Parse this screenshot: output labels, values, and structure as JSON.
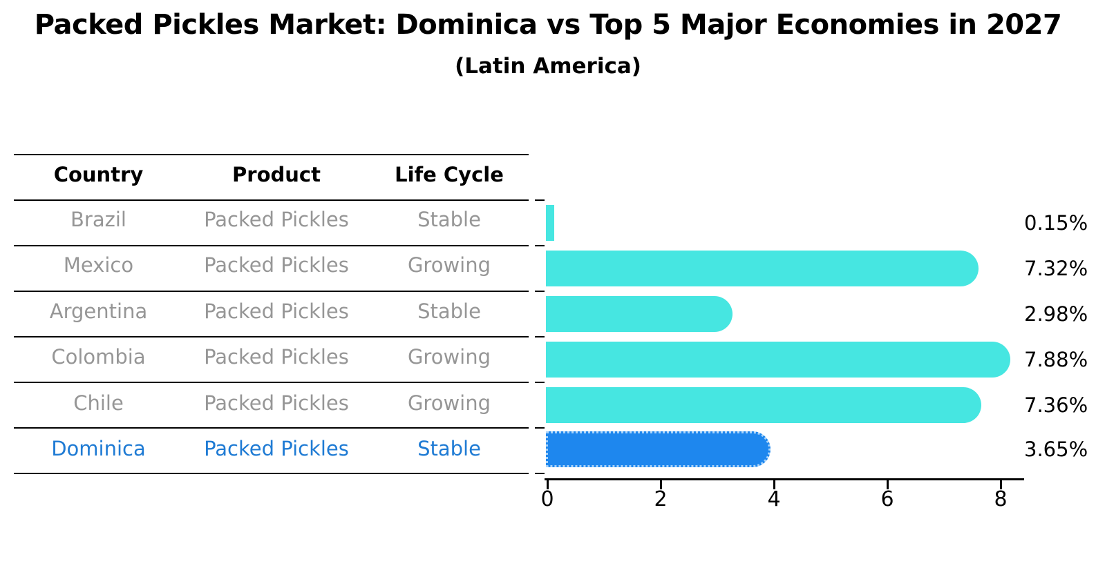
{
  "title": "Packed Pickles Market: Dominica vs Top 5 Major Economies in 2027",
  "subtitle": "(Latin America)",
  "table": {
    "headers": [
      "Country",
      "Product",
      "Life Cycle"
    ],
    "rows": [
      {
        "country": "Brazil",
        "product": "Packed Pickles",
        "life_cycle": "Stable",
        "highlighted": false
      },
      {
        "country": "Mexico",
        "product": "Packed Pickles",
        "life_cycle": "Growing",
        "highlighted": false
      },
      {
        "country": "Argentina",
        "product": "Packed Pickles",
        "life_cycle": "Stable",
        "highlighted": false
      },
      {
        "country": "Colombia",
        "product": "Packed Pickles",
        "life_cycle": "Growing",
        "highlighted": false
      },
      {
        "country": "Chile",
        "product": "Packed Pickles",
        "life_cycle": "Growing",
        "highlighted": false
      },
      {
        "country": "Dominica",
        "product": "Packed Pickles",
        "life_cycle": "Stable",
        "highlighted": true
      }
    ]
  },
  "chart_data": {
    "type": "bar",
    "orientation": "horizontal",
    "title": "Packed Pickles Market: Dominica vs Top 5 Major Economies in 2027",
    "subtitle": "(Latin America)",
    "categories": [
      "Brazil",
      "Mexico",
      "Argentina",
      "Colombia",
      "Chile",
      "Dominica"
    ],
    "values": [
      0.15,
      7.32,
      2.98,
      7.88,
      7.36,
      3.65
    ],
    "value_labels": [
      "0.15%",
      "7.32%",
      "2.98%",
      "7.88%",
      "7.36%",
      "3.65%"
    ],
    "xtick_labels": [
      "0",
      "2",
      "4",
      "6",
      "8"
    ],
    "xticks": [
      0,
      2,
      4,
      6,
      8
    ],
    "xlim": [
      0,
      8.45
    ],
    "grid": false,
    "legend": "none",
    "highlight_index": 5,
    "colors": {
      "bar": "#46e6e1",
      "highlight_bar": "#1e87ee",
      "highlight_bar_border": "#aad4fa",
      "highlight_text": "#1f7bd4",
      "cell_text": "#969696",
      "header_text": "#000000",
      "axis": "#000000"
    }
  }
}
